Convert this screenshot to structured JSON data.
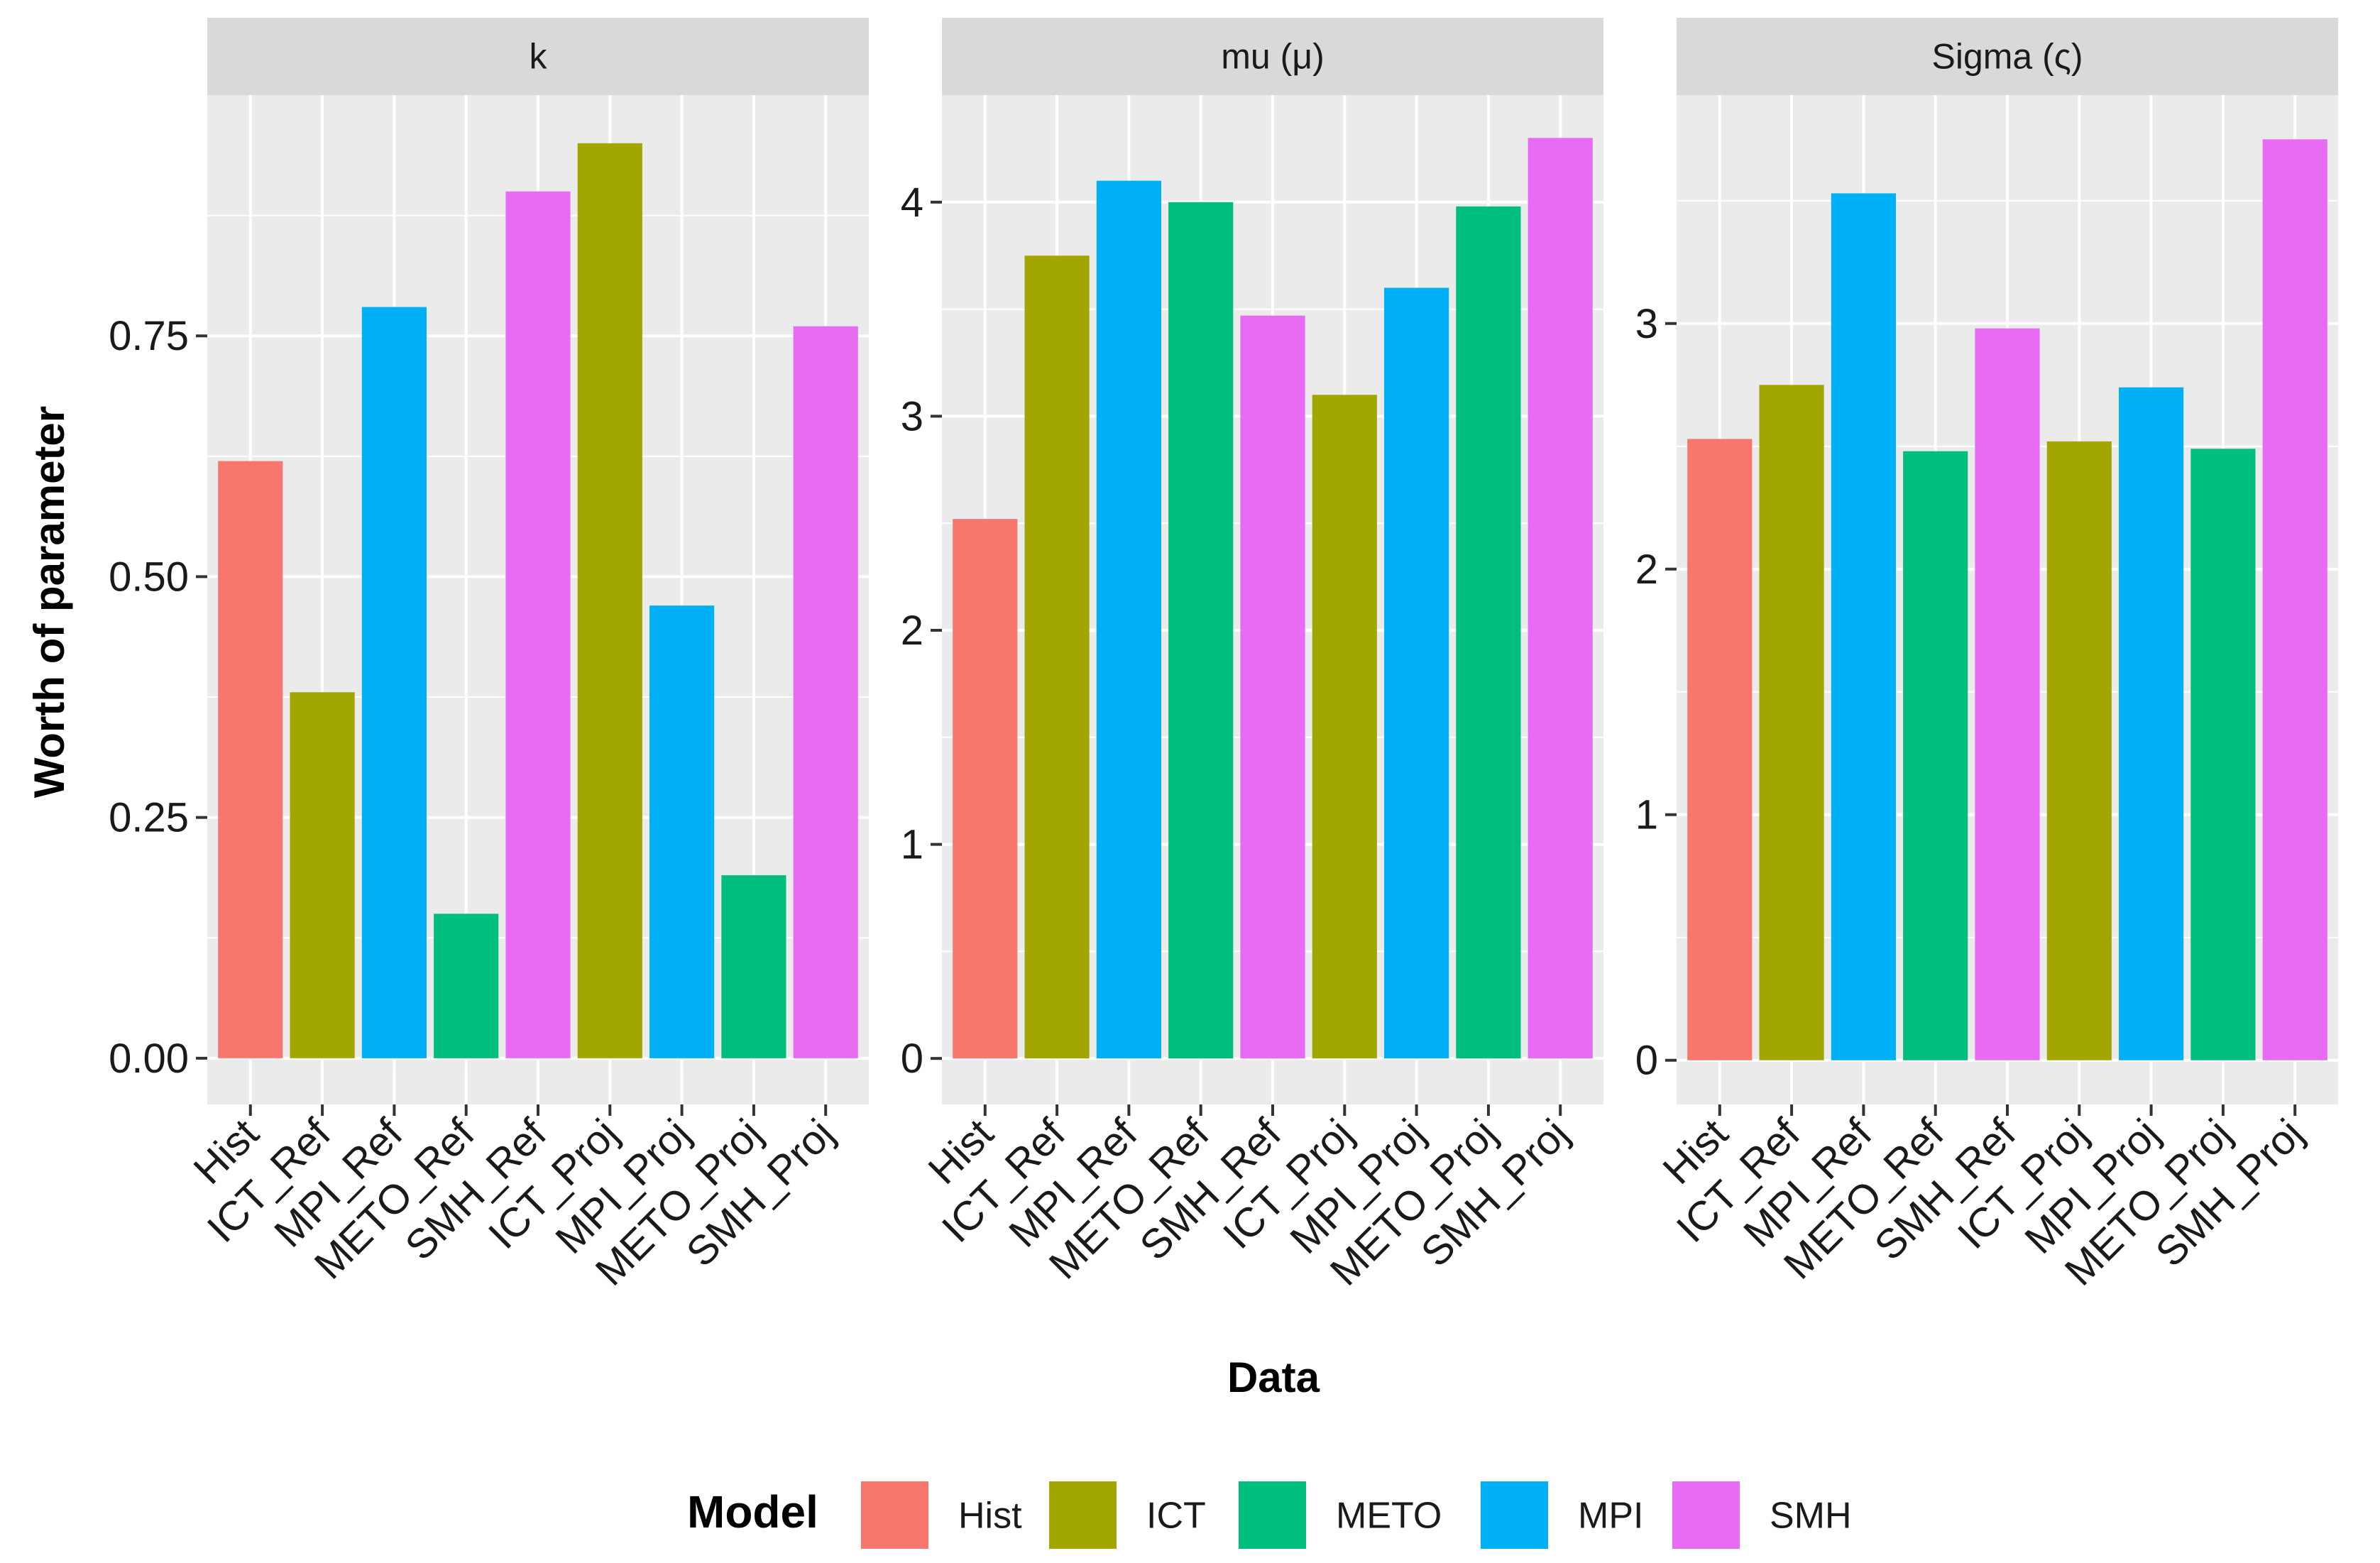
{
  "chart_data": {
    "type": "bar",
    "facet_by": "parameter",
    "ylabel": "Worth of parameter",
    "xlabel": "Data",
    "legend": {
      "title": "Model",
      "placement": "bottom",
      "entries": [
        {
          "name": "Hist",
          "color": "#F8766D"
        },
        {
          "name": "ICT",
          "color": "#A3A500"
        },
        {
          "name": "METO",
          "color": "#00BF7D"
        },
        {
          "name": "MPI",
          "color": "#00B0F6"
        },
        {
          "name": "SMH",
          "color": "#E76BF3"
        }
      ]
    },
    "categories": [
      "Hist",
      "ICT_Ref",
      "MPI_Ref",
      "METO_Ref",
      "SMH_Ref",
      "ICT_Proj",
      "MPI_Proj",
      "METO_Proj",
      "SMH_Proj"
    ],
    "category_model": [
      "Hist",
      "ICT",
      "MPI",
      "METO",
      "SMH",
      "ICT",
      "MPI",
      "METO",
      "SMH"
    ],
    "panels": [
      {
        "title": "k",
        "values": [
          0.62,
          0.38,
          0.78,
          0.15,
          0.9,
          0.95,
          0.47,
          0.19,
          0.76
        ],
        "ylim": [
          -0.048,
          1.0
        ],
        "yticks": [
          0.0,
          0.25,
          0.5,
          0.75
        ],
        "ytick_labels": [
          "0.00",
          "0.25",
          "0.50",
          "0.75"
        ]
      },
      {
        "title": "mu (μ)",
        "values": [
          2.52,
          3.75,
          4.1,
          4.0,
          3.47,
          3.1,
          3.6,
          3.98,
          4.3
        ],
        "ylim": [
          -0.215,
          4.5
        ],
        "yticks": [
          0,
          1,
          2,
          3,
          4
        ],
        "ytick_labels": [
          "0",
          "1",
          "2",
          "3",
          "4"
        ]
      },
      {
        "title": "Sigma (ς)",
        "values": [
          2.53,
          2.75,
          3.53,
          2.48,
          2.98,
          2.52,
          2.74,
          2.49,
          3.75
        ],
        "ylim": [
          -0.18,
          3.93
        ],
        "yticks": [
          0,
          1,
          2,
          3
        ],
        "ytick_labels": [
          "0",
          "1",
          "2",
          "3"
        ]
      }
    ]
  }
}
